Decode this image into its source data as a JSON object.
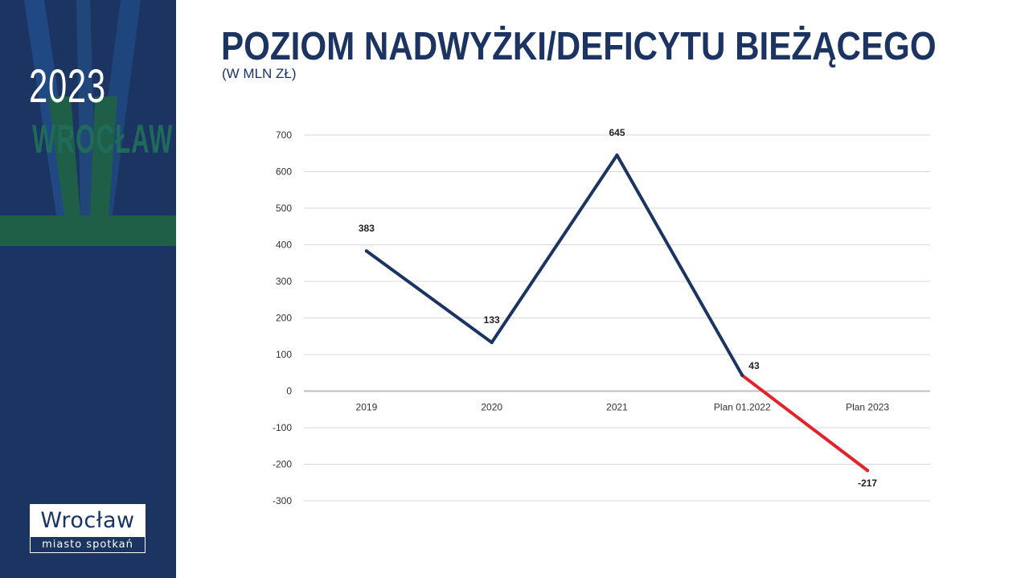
{
  "sidebar": {
    "year": "2023",
    "city": "WROCŁAW",
    "logo_name": "Wrocław",
    "logo_tagline": "miasto spotkań"
  },
  "colors": {
    "navy": "#1b3461",
    "green": "#1f5f47",
    "deficit_red": "#e3232c"
  },
  "chart_data": {
    "type": "line",
    "title": "POZIOM NADWYŻKI/DEFICYTU BIEŻĄCEGO",
    "subtitle": "(W MLN ZŁ)",
    "categories": [
      "2019",
      "2020",
      "2021",
      "Plan 01.2022",
      "Plan 2023"
    ],
    "series": [
      {
        "values": [
          383,
          133,
          645,
          43,
          -217
        ]
      }
    ],
    "data_labels": [
      "383",
      "133",
      "645",
      "43",
      "-217"
    ],
    "segment_colors": [
      "#1b3461",
      "#1b3461",
      "#1b3461",
      "#e3232c"
    ],
    "ylim": [
      -300,
      700
    ],
    "y_ticks": [
      700,
      600,
      500,
      400,
      300,
      200,
      100,
      0,
      -100,
      -200,
      -300
    ],
    "grid": true,
    "legend": "none"
  }
}
